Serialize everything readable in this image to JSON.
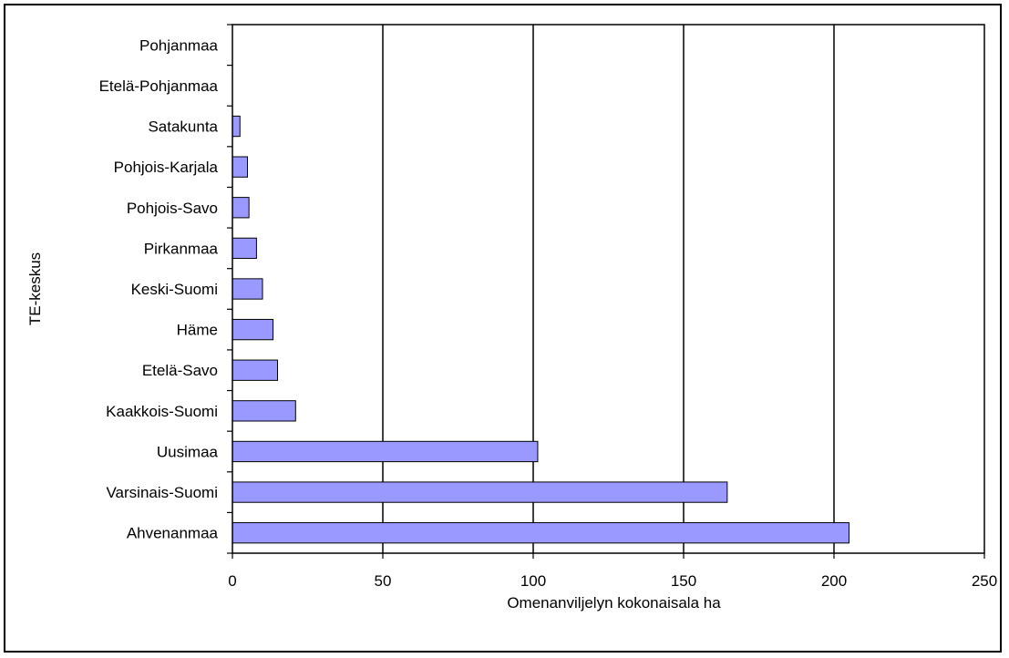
{
  "chart_data": {
    "type": "bar",
    "orientation": "horizontal",
    "xlabel": "Omenanviljelyn kokonaisala ha",
    "ylabel": "TE-keskus",
    "xlim": [
      0,
      250
    ],
    "xticks": [
      "0",
      "50",
      "100",
      "150",
      "200",
      "250"
    ],
    "grid": "vertical",
    "categories": [
      "Pohjanmaa",
      "Etelä-Pohjanmaa",
      "Satakunta",
      "Pohjois-Karjala",
      "Pohjois-Savo",
      "Pirkanmaa",
      "Keski-Suomi",
      "Häme",
      "Etelä-Savo",
      "Kaakkois-Suomi",
      "Uusimaa",
      "Varsinais-Suomi",
      "Ahvenanmaa"
    ],
    "values": [
      0,
      0,
      2.5,
      5,
      5.5,
      8,
      10,
      13.5,
      15,
      21,
      101.5,
      164.5,
      205
    ],
    "bar_color": "#9999ff",
    "bar_edge_color": "#000000"
  }
}
